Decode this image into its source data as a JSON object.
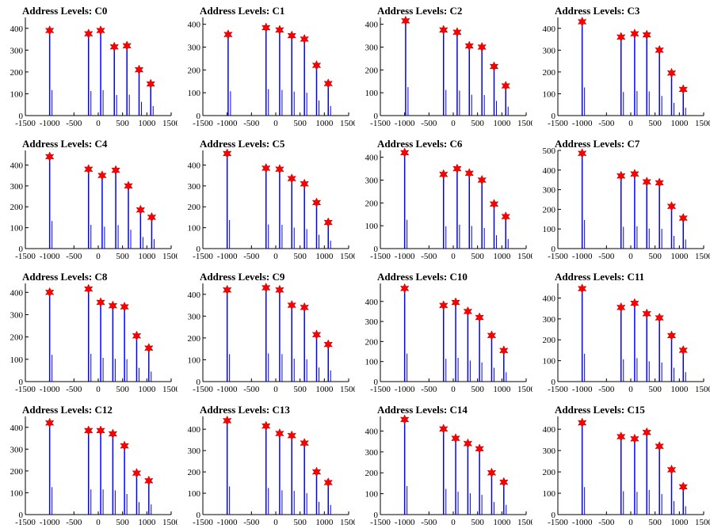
{
  "colors": {
    "spike": "#0000ff",
    "marker": "#ff0000",
    "axis": "#000000"
  },
  "chart_data": [
    {
      "type": "bar",
      "title": "Address Levels: C0",
      "xlim": [
        -1500,
        1500
      ],
      "ylim": [
        0,
        450
      ],
      "xticks": [
        -1500,
        -1000,
        -500,
        0,
        500,
        1000,
        1500
      ],
      "yticks": [
        0,
        100,
        200,
        300,
        400
      ],
      "peaks": [
        {
          "x": -1000,
          "y": 390
        },
        {
          "x": -200,
          "y": 375
        },
        {
          "x": 50,
          "y": 390
        },
        {
          "x": 330,
          "y": 315
        },
        {
          "x": 590,
          "y": 320
        },
        {
          "x": 840,
          "y": 210
        },
        {
          "x": 1080,
          "y": 145
        }
      ]
    },
    {
      "type": "bar",
      "title": "Address Levels: C1",
      "xlim": [
        -1500,
        1500
      ],
      "ylim": [
        0,
        430
      ],
      "xticks": [
        -1500,
        -1000,
        -500,
        0,
        500,
        1000,
        1500
      ],
      "yticks": [
        0,
        100,
        200,
        300,
        400
      ],
      "peaks": [
        {
          "x": -980,
          "y": 355
        },
        {
          "x": -200,
          "y": 385
        },
        {
          "x": 80,
          "y": 375
        },
        {
          "x": 330,
          "y": 350
        },
        {
          "x": 590,
          "y": 335
        },
        {
          "x": 840,
          "y": 220
        },
        {
          "x": 1080,
          "y": 140
        }
      ]
    },
    {
      "type": "bar",
      "title": "Address Levels: C2",
      "xlim": [
        -1500,
        1500
      ],
      "ylim": [
        0,
        430
      ],
      "xticks": [
        -1500,
        -1000,
        -500,
        0,
        500,
        1000,
        1500
      ],
      "yticks": [
        0,
        100,
        200,
        300,
        400
      ],
      "peaks": [
        {
          "x": -980,
          "y": 415
        },
        {
          "x": -200,
          "y": 375
        },
        {
          "x": 80,
          "y": 365
        },
        {
          "x": 330,
          "y": 305
        },
        {
          "x": 590,
          "y": 300
        },
        {
          "x": 840,
          "y": 215
        },
        {
          "x": 1080,
          "y": 130
        }
      ]
    },
    {
      "type": "bar",
      "title": "Address Levels: C3",
      "xlim": [
        -1500,
        1500
      ],
      "ylim": [
        0,
        450
      ],
      "xticks": [
        -1500,
        -1000,
        -500,
        0,
        500,
        1000,
        1500
      ],
      "yticks": [
        0,
        100,
        200,
        300,
        400
      ],
      "peaks": [
        {
          "x": -1000,
          "y": 430
        },
        {
          "x": -200,
          "y": 360
        },
        {
          "x": 80,
          "y": 375
        },
        {
          "x": 330,
          "y": 370
        },
        {
          "x": 590,
          "y": 300
        },
        {
          "x": 840,
          "y": 195
        },
        {
          "x": 1080,
          "y": 120
        }
      ]
    },
    {
      "type": "bar",
      "title": "Address Levels: C4",
      "xlim": [
        -1500,
        1500
      ],
      "ylim": [
        0,
        470
      ],
      "xticks": [
        -1500,
        -1000,
        -500,
        0,
        500,
        1000,
        1500
      ],
      "yticks": [
        0,
        100,
        200,
        300,
        400
      ],
      "peaks": [
        {
          "x": -1000,
          "y": 440
        },
        {
          "x": -200,
          "y": 380
        },
        {
          "x": 80,
          "y": 350
        },
        {
          "x": 360,
          "y": 375
        },
        {
          "x": 620,
          "y": 300
        },
        {
          "x": 870,
          "y": 185
        },
        {
          "x": 1100,
          "y": 150
        }
      ]
    },
    {
      "type": "bar",
      "title": "Address Levels: C5",
      "xlim": [
        -1500,
        1500
      ],
      "ylim": [
        0,
        470
      ],
      "xticks": [
        -1500,
        -1000,
        -500,
        0,
        500,
        1000,
        1500
      ],
      "yticks": [
        0,
        100,
        200,
        300,
        400
      ],
      "peaks": [
        {
          "x": -1000,
          "y": 455
        },
        {
          "x": -200,
          "y": 385
        },
        {
          "x": 80,
          "y": 380
        },
        {
          "x": 330,
          "y": 335
        },
        {
          "x": 590,
          "y": 310
        },
        {
          "x": 840,
          "y": 220
        },
        {
          "x": 1080,
          "y": 125
        }
      ]
    },
    {
      "type": "bar",
      "title": "Address Levels: C6",
      "xlim": [
        -1500,
        1500
      ],
      "ylim": [
        0,
        430
      ],
      "xticks": [
        -1500,
        -1000,
        -500,
        0,
        500,
        1000,
        1500
      ],
      "yticks": [
        0,
        100,
        200,
        300,
        400
      ],
      "peaks": [
        {
          "x": -1000,
          "y": 420
        },
        {
          "x": -200,
          "y": 325
        },
        {
          "x": 80,
          "y": 350
        },
        {
          "x": 330,
          "y": 330
        },
        {
          "x": 590,
          "y": 300
        },
        {
          "x": 840,
          "y": 195
        },
        {
          "x": 1080,
          "y": 140
        }
      ]
    },
    {
      "type": "bar",
      "title": "Address Levels: C7",
      "xlim": [
        -1500,
        1500
      ],
      "ylim": [
        0,
        500
      ],
      "xticks": [
        -1500,
        -1000,
        -500,
        0,
        500,
        1000,
        1500
      ],
      "yticks": [
        0,
        100,
        200,
        300,
        400,
        500
      ],
      "peaks": [
        {
          "x": -1000,
          "y": 485
        },
        {
          "x": -200,
          "y": 370
        },
        {
          "x": 80,
          "y": 380
        },
        {
          "x": 330,
          "y": 340
        },
        {
          "x": 590,
          "y": 335
        },
        {
          "x": 840,
          "y": 215
        },
        {
          "x": 1080,
          "y": 155
        }
      ]
    },
    {
      "type": "bar",
      "title": "Address Levels: C8",
      "xlim": [
        -1500,
        1500
      ],
      "ylim": [
        0,
        440
      ],
      "xticks": [
        -1500,
        -1000,
        -500,
        0,
        500,
        1000,
        1500
      ],
      "yticks": [
        0,
        100,
        200,
        300,
        400
      ],
      "peaks": [
        {
          "x": -1000,
          "y": 400
        },
        {
          "x": -200,
          "y": 415
        },
        {
          "x": 50,
          "y": 355
        },
        {
          "x": 300,
          "y": 340
        },
        {
          "x": 540,
          "y": 335
        },
        {
          "x": 790,
          "y": 205
        },
        {
          "x": 1040,
          "y": 150
        }
      ]
    },
    {
      "type": "bar",
      "title": "Address Levels: C9",
      "xlim": [
        -1500,
        1500
      ],
      "ylim": [
        0,
        450
      ],
      "xticks": [
        -1500,
        -1000,
        -500,
        0,
        500,
        1000,
        1500
      ],
      "yticks": [
        0,
        100,
        200,
        300,
        400
      ],
      "peaks": [
        {
          "x": -1000,
          "y": 420
        },
        {
          "x": -200,
          "y": 430
        },
        {
          "x": 80,
          "y": 420
        },
        {
          "x": 330,
          "y": 350
        },
        {
          "x": 590,
          "y": 340
        },
        {
          "x": 840,
          "y": 215
        },
        {
          "x": 1080,
          "y": 170
        }
      ]
    },
    {
      "type": "bar",
      "title": "Address Levels: C10",
      "xlim": [
        -1500,
        1500
      ],
      "ylim": [
        0,
        490
      ],
      "xticks": [
        -1500,
        -1000,
        -500,
        0,
        500,
        1000,
        1500
      ],
      "yticks": [
        0,
        100,
        200,
        300,
        400
      ],
      "peaks": [
        {
          "x": -1000,
          "y": 465
        },
        {
          "x": -200,
          "y": 380
        },
        {
          "x": 50,
          "y": 395
        },
        {
          "x": 300,
          "y": 350
        },
        {
          "x": 540,
          "y": 320
        },
        {
          "x": 790,
          "y": 230
        },
        {
          "x": 1040,
          "y": 155
        }
      ]
    },
    {
      "type": "bar",
      "title": "Address Levels: C11",
      "xlim": [
        -1500,
        1500
      ],
      "ylim": [
        0,
        470
      ],
      "xticks": [
        -1500,
        -1000,
        -500,
        0,
        500,
        1000,
        1500
      ],
      "yticks": [
        0,
        100,
        200,
        300,
        400
      ],
      "peaks": [
        {
          "x": -1000,
          "y": 445
        },
        {
          "x": -200,
          "y": 355
        },
        {
          "x": 80,
          "y": 375
        },
        {
          "x": 330,
          "y": 325
        },
        {
          "x": 590,
          "y": 305
        },
        {
          "x": 840,
          "y": 220
        },
        {
          "x": 1080,
          "y": 150
        }
      ]
    },
    {
      "type": "bar",
      "title": "Address Levels: C12",
      "xlim": [
        -1500,
        1500
      ],
      "ylim": [
        0,
        450
      ],
      "xticks": [
        -1500,
        -1000,
        -500,
        0,
        500,
        1000,
        1500
      ],
      "yticks": [
        0,
        100,
        200,
        300,
        400
      ],
      "peaks": [
        {
          "x": -1000,
          "y": 420
        },
        {
          "x": -200,
          "y": 385
        },
        {
          "x": 50,
          "y": 385
        },
        {
          "x": 300,
          "y": 370
        },
        {
          "x": 540,
          "y": 315
        },
        {
          "x": 790,
          "y": 190
        },
        {
          "x": 1040,
          "y": 155
        }
      ]
    },
    {
      "type": "bar",
      "title": "Address Levels: C13",
      "xlim": [
        -1500,
        1500
      ],
      "ylim": [
        0,
        460
      ],
      "xticks": [
        -1500,
        -1000,
        -500,
        0,
        500,
        1000,
        1500
      ],
      "yticks": [
        0,
        100,
        200,
        300,
        400
      ],
      "peaks": [
        {
          "x": -1000,
          "y": 440
        },
        {
          "x": -200,
          "y": 415
        },
        {
          "x": 80,
          "y": 380
        },
        {
          "x": 330,
          "y": 370
        },
        {
          "x": 590,
          "y": 335
        },
        {
          "x": 840,
          "y": 200
        },
        {
          "x": 1080,
          "y": 150
        }
      ]
    },
    {
      "type": "bar",
      "title": "Address Levels: C14",
      "xlim": [
        -1500,
        1500
      ],
      "ylim": [
        0,
        470
      ],
      "xticks": [
        -1500,
        -1000,
        -500,
        0,
        500,
        1000,
        1500
      ],
      "yticks": [
        0,
        100,
        200,
        300,
        400
      ],
      "peaks": [
        {
          "x": -1000,
          "y": 455
        },
        {
          "x": -200,
          "y": 410
        },
        {
          "x": 50,
          "y": 365
        },
        {
          "x": 300,
          "y": 340
        },
        {
          "x": 540,
          "y": 315
        },
        {
          "x": 790,
          "y": 200
        },
        {
          "x": 1040,
          "y": 155
        }
      ]
    },
    {
      "type": "bar",
      "title": "Address Levels: C15",
      "xlim": [
        -1500,
        1500
      ],
      "ylim": [
        0,
        460
      ],
      "xticks": [
        -1500,
        -1000,
        -500,
        0,
        500,
        1000,
        1500
      ],
      "yticks": [
        0,
        100,
        200,
        300,
        400
      ],
      "peaks": [
        {
          "x": -1000,
          "y": 430
        },
        {
          "x": -200,
          "y": 365
        },
        {
          "x": 80,
          "y": 355
        },
        {
          "x": 330,
          "y": 385
        },
        {
          "x": 590,
          "y": 320
        },
        {
          "x": 840,
          "y": 210
        },
        {
          "x": 1080,
          "y": 130
        }
      ]
    }
  ]
}
